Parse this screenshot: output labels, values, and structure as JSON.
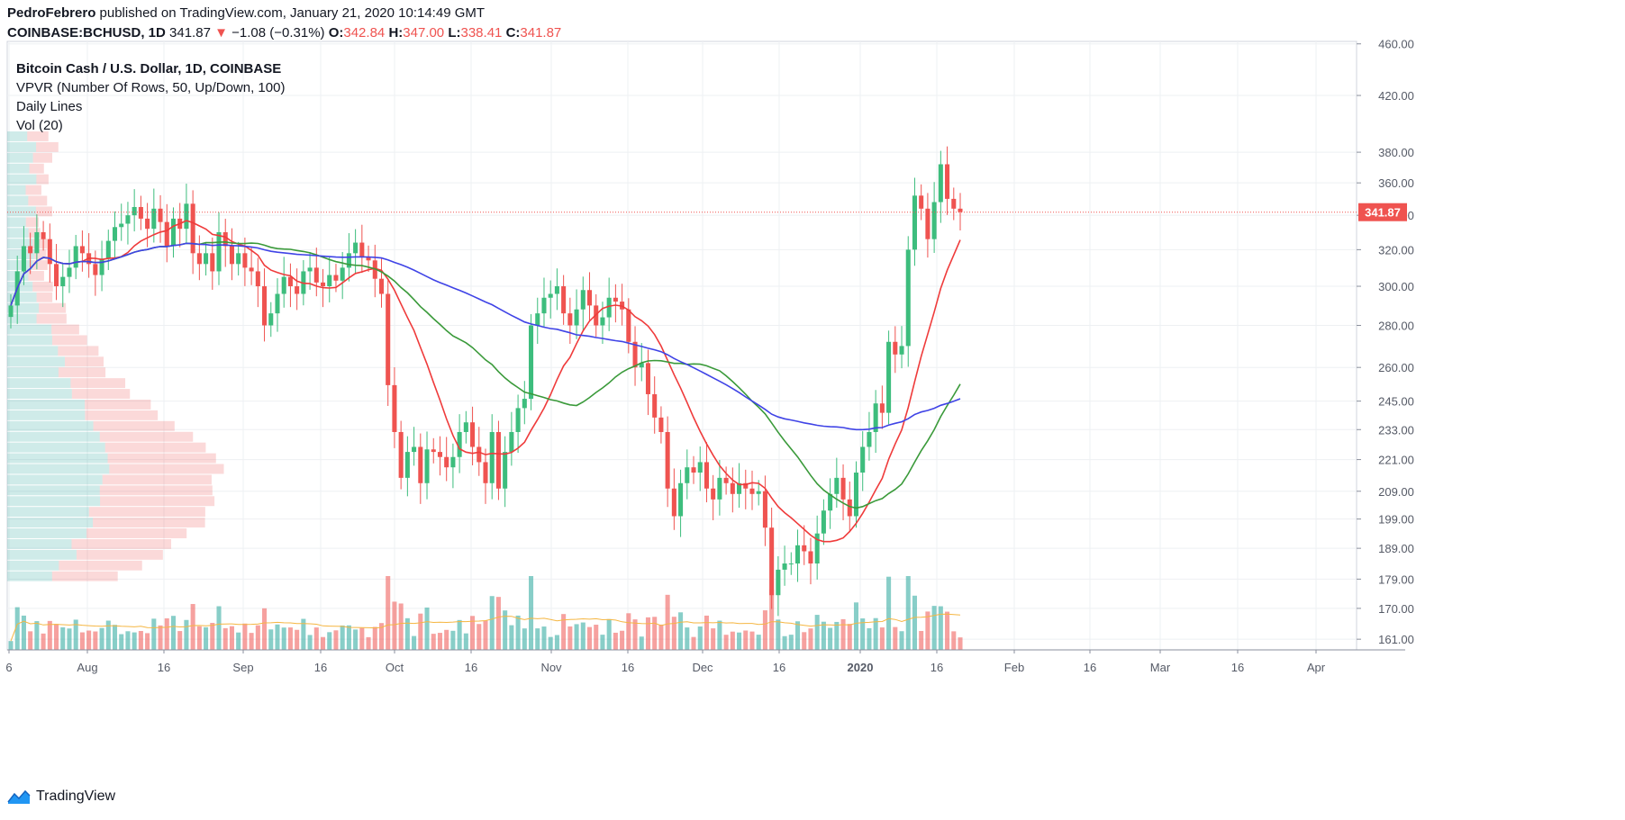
{
  "header": {
    "author": "PedroFebrero",
    "published_text": "published on TradingView.com, January 21, 2020 10:14:49 GMT"
  },
  "ohlc": {
    "symbol": "COINBASE:BCHUSD, 1D",
    "last": "341.87",
    "change_arrow": "▼",
    "change": "−1.08 (−0.31%)",
    "o_label": "O:",
    "o": "342.84",
    "h_label": "H:",
    "h": "347.00",
    "l_label": "L:",
    "l": "338.41",
    "c_label": "C:",
    "c": "341.87"
  },
  "legend": {
    "title": "Bitcoin Cash / U.S. Dollar, 1D, COINBASE",
    "vpvr": "VPVR (Number Of Rows, 50, Up/Down, 100)",
    "daily_lines": "Daily Lines",
    "vol": "Vol (20)"
  },
  "footer": {
    "brand": "TradingView"
  },
  "colors": {
    "up": "#26a69a",
    "down": "#ef5350",
    "up_candle": "#3dbd7d",
    "down_candle": "#ef5350",
    "ma_red": "#ef3b3b",
    "ma_green": "#3a9a3a",
    "ma_blue": "#3f43e6",
    "vol_ma": "#f5b642",
    "grid": "#eef0f3",
    "price_line": "#ef5350"
  },
  "chart_data": {
    "type": "candlestick",
    "symbol": "COINBASE:BCHUSD",
    "interval": "1D",
    "last_price": 341.87,
    "price_axis": {
      "scale": "log",
      "ticks": [
        "460.00",
        "420.00",
        "380.00",
        "360.00",
        "340.00",
        "320.00",
        "300.00",
        "280.00",
        "260.00",
        "245.00",
        "233.00",
        "221.00",
        "209.00",
        "199.00",
        "189.00",
        "179.00",
        "170.00",
        "161.00"
      ],
      "ylim": [
        158,
        462
      ]
    },
    "time_axis": {
      "ticks": [
        "6",
        "Aug",
        "16",
        "Sep",
        "16",
        "Oct",
        "16",
        "Nov",
        "16",
        "Dec",
        "16",
        "2020",
        "16",
        "Feb",
        "16",
        "Mar",
        "16",
        "Apr"
      ],
      "bold_ticks": [
        "2020"
      ]
    },
    "candles_close": [
      290,
      308,
      322,
      318,
      330,
      326,
      312,
      300,
      305,
      310,
      322,
      318,
      312,
      306,
      315,
      325,
      333,
      335,
      340,
      345,
      338,
      332,
      344,
      336,
      322,
      338,
      332,
      347,
      318,
      312,
      318,
      308,
      330,
      322,
      312,
      318,
      310,
      308,
      300,
      280,
      286,
      296,
      305,
      300,
      296,
      308,
      310,
      302,
      300,
      306,
      303,
      310,
      318,
      324,
      316,
      314,
      304,
      296,
      252,
      232,
      214,
      224,
      226,
      212,
      225,
      224,
      222,
      218,
      222,
      232,
      236,
      226,
      220,
      212,
      232,
      210,
      224,
      232,
      242,
      246,
      280,
      286,
      294,
      296,
      300,
      286,
      280,
      288,
      298,
      290,
      280,
      284,
      294,
      292,
      288,
      272,
      260,
      262,
      248,
      238,
      232,
      210,
      200,
      212,
      218,
      216,
      220,
      210,
      206,
      214,
      212,
      208,
      212,
      210,
      208,
      209,
      196,
      174,
      182,
      184,
      184,
      190,
      188,
      184,
      194,
      202,
      208,
      214,
      206,
      200,
      216,
      226,
      232,
      244,
      240,
      272,
      266,
      270,
      320,
      352,
      344,
      326,
      348,
      372,
      350,
      344,
      342
    ],
    "volume_profile_rows": 50,
    "moving_averages": [
      "red (short)",
      "green (medium)",
      "blue (long)"
    ],
    "volume_ma_period": 20
  }
}
